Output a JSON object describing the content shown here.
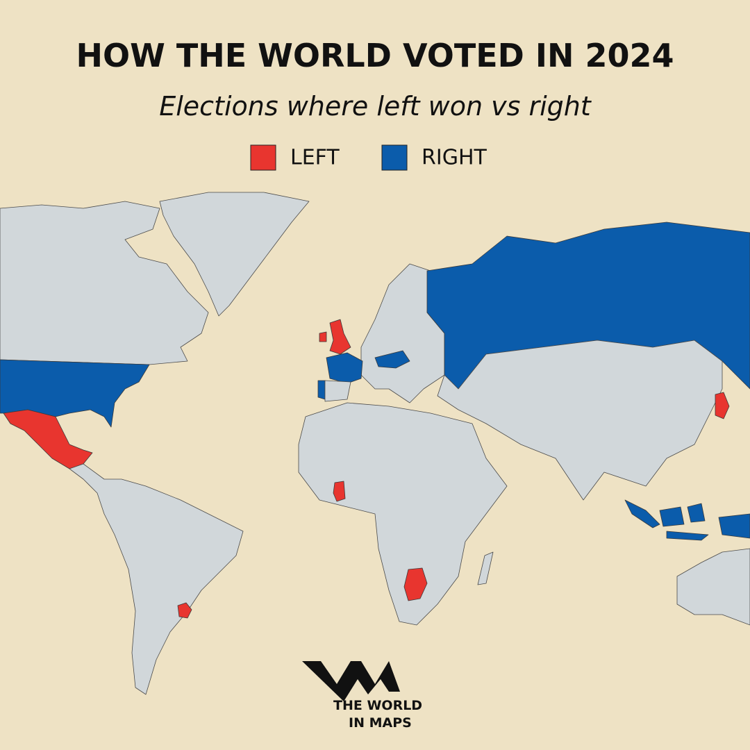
{
  "header": {
    "title": "HOW THE WORLD VOTED IN 2024",
    "subtitle": "Elections where left won vs right"
  },
  "legend": [
    {
      "label": "LEFT",
      "color": "#e8352f"
    },
    {
      "label": "RIGHT",
      "color": "#0b5cab"
    }
  ],
  "logo": {
    "line1": "THE WORLD",
    "line2": "IN MAPS"
  }
}
